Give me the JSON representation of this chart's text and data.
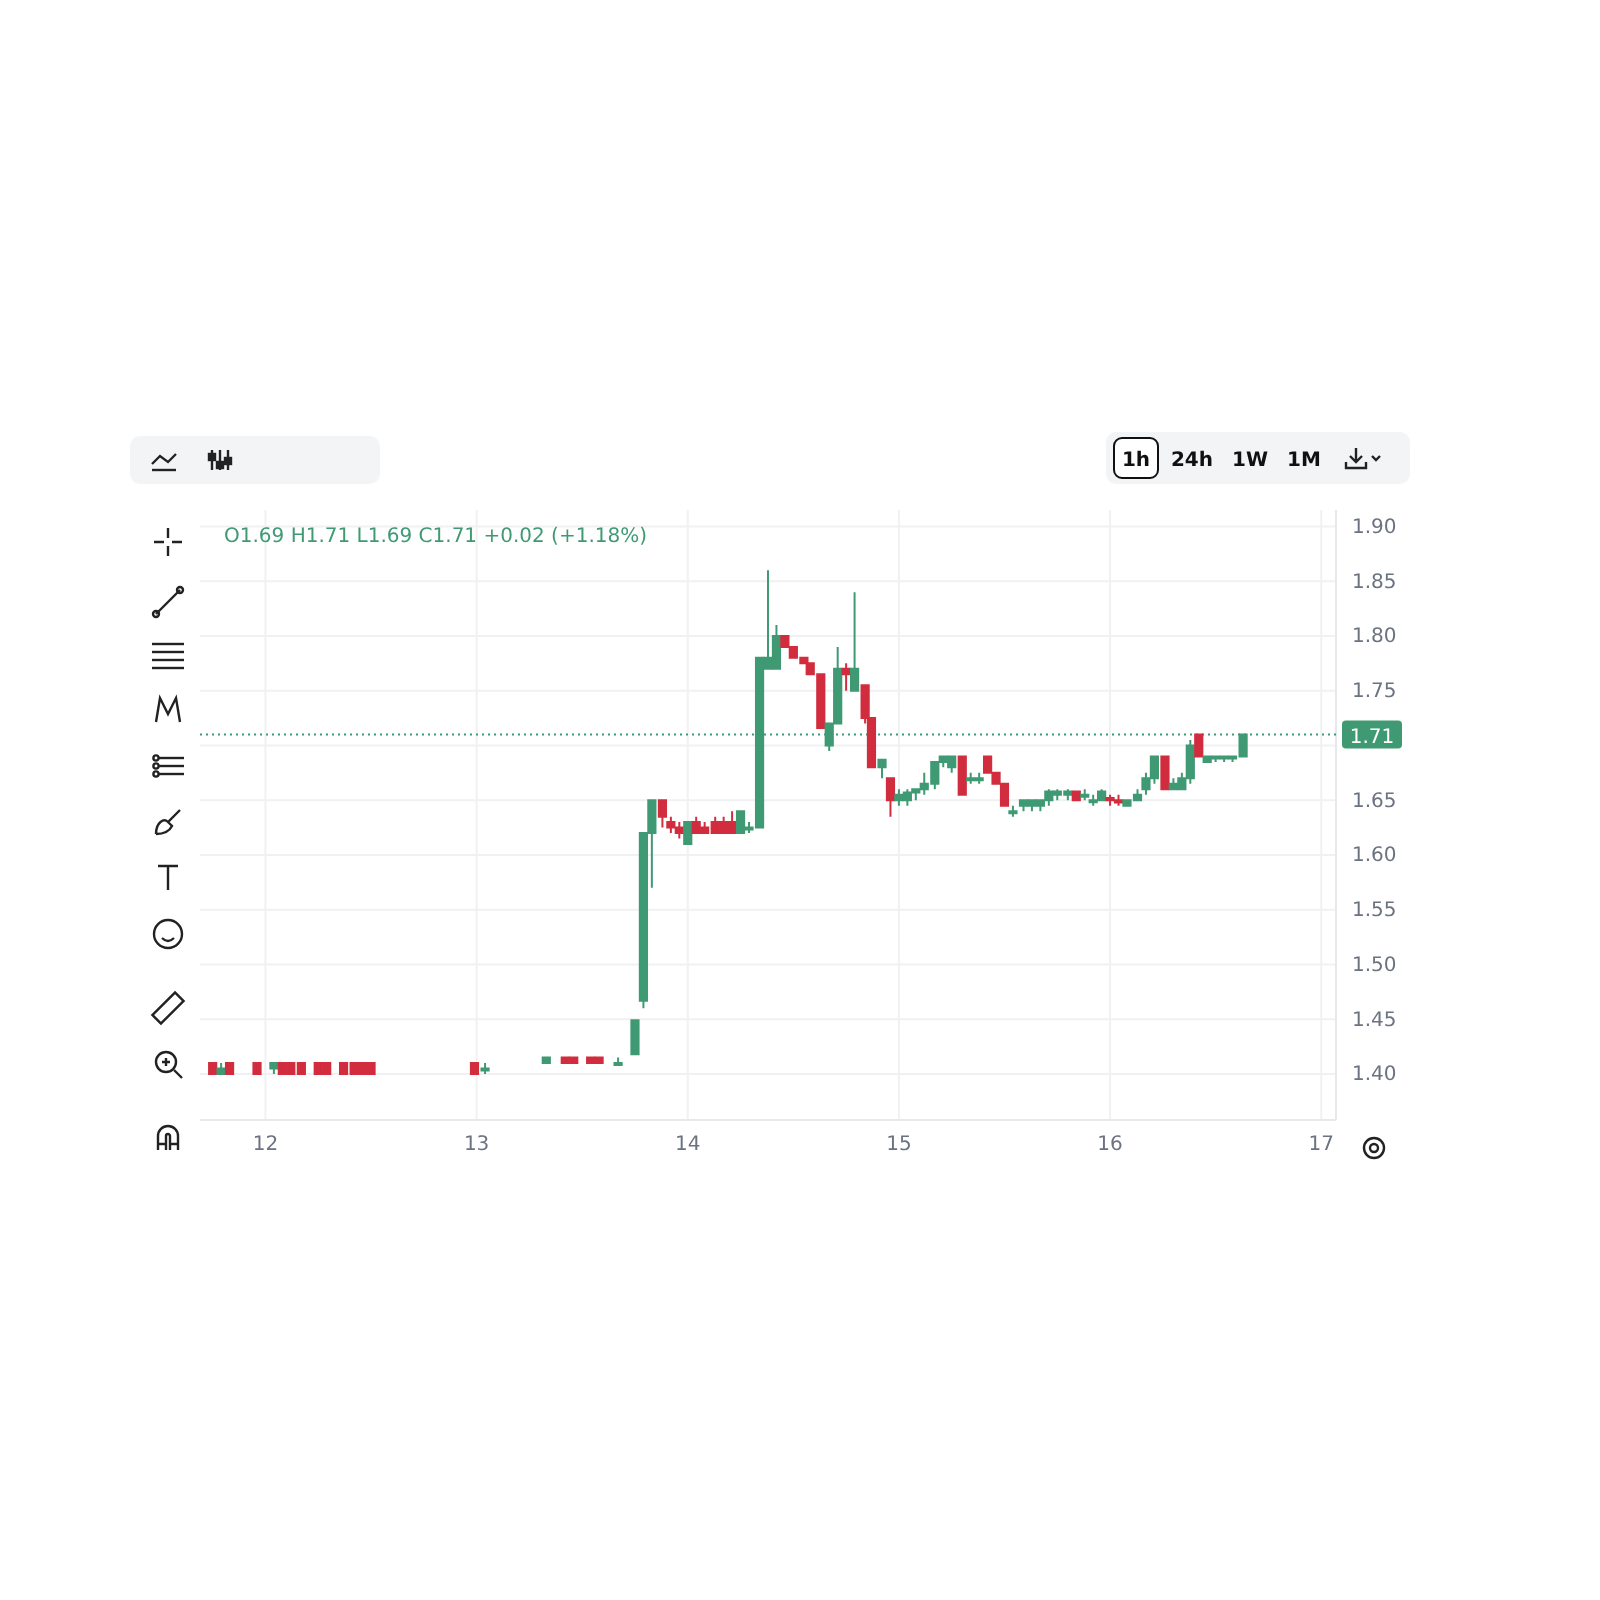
{
  "chart_data": {
    "type": "candlestick",
    "annotations": [
      "O1.69 H1.71 L1.69 C1.71 +0.02 (+1.18%)",
      "1h",
      "24h",
      "1W",
      "1M"
    ],
    "x": [
      11.75,
      11.79,
      11.83,
      11.96,
      12.04,
      12.08,
      12.12,
      12.17,
      12.25,
      12.29,
      12.37,
      12.42,
      12.46,
      12.5,
      12.99,
      13.04,
      13.33,
      13.42,
      13.46,
      13.54,
      13.58,
      13.67,
      13.75,
      13.79,
      13.83,
      13.88,
      13.92,
      13.96,
      14.0,
      14.04,
      14.08,
      14.13,
      14.17,
      14.21,
      14.25,
      14.29,
      14.34,
      14.38,
      14.42,
      14.46,
      14.5,
      14.55,
      14.58,
      14.63,
      14.67,
      14.71,
      14.75,
      14.79,
      14.84,
      14.87,
      14.92,
      14.96,
      15.0,
      15.04,
      15.08,
      15.12,
      15.17,
      15.21,
      15.25,
      15.3,
      15.34,
      15.38,
      15.42,
      15.46,
      15.5,
      15.54,
      15.59,
      15.63,
      15.67,
      15.71,
      15.75,
      15.8,
      15.84,
      15.88,
      15.92,
      15.96,
      16.0,
      16.04,
      16.08,
      16.13,
      16.17,
      16.21,
      16.26,
      16.3,
      16.34,
      16.38,
      16.42,
      16.46,
      16.5,
      16.54,
      16.58,
      16.63
    ],
    "ohlc": [
      [
        1.41,
        1.41,
        1.4,
        1.4
      ],
      [
        1.4,
        1.41,
        1.4,
        1.405
      ],
      [
        1.41,
        1.41,
        1.4,
        1.4
      ],
      [
        1.41,
        1.41,
        1.4,
        1.4
      ],
      [
        1.405,
        1.41,
        1.4,
        1.41
      ],
      [
        1.41,
        1.41,
        1.4,
        1.4
      ],
      [
        1.41,
        1.41,
        1.4,
        1.4
      ],
      [
        1.41,
        1.41,
        1.4,
        1.4
      ],
      [
        1.41,
        1.41,
        1.4,
        1.4
      ],
      [
        1.41,
        1.41,
        1.4,
        1.4
      ],
      [
        1.41,
        1.41,
        1.4,
        1.4
      ],
      [
        1.41,
        1.41,
        1.4,
        1.4
      ],
      [
        1.41,
        1.41,
        1.4,
        1.4
      ],
      [
        1.41,
        1.41,
        1.4,
        1.4
      ],
      [
        1.41,
        1.41,
        1.4,
        1.4
      ],
      [
        1.405,
        1.41,
        1.4,
        1.405
      ],
      [
        1.41,
        1.415,
        1.41,
        1.415
      ],
      [
        1.415,
        1.415,
        1.41,
        1.41
      ],
      [
        1.415,
        1.415,
        1.41,
        1.41
      ],
      [
        1.415,
        1.415,
        1.41,
        1.41
      ],
      [
        1.415,
        1.415,
        1.41,
        1.41
      ],
      [
        1.41,
        1.415,
        1.41,
        1.41
      ],
      [
        1.418,
        1.45,
        1.418,
        1.449
      ],
      [
        1.467,
        1.62,
        1.46,
        1.62
      ],
      [
        1.62,
        1.65,
        1.57,
        1.65
      ],
      [
        1.65,
        1.65,
        1.625,
        1.635
      ],
      [
        1.63,
        1.635,
        1.62,
        1.625
      ],
      [
        1.625,
        1.63,
        1.615,
        1.62
      ],
      [
        1.61,
        1.63,
        1.61,
        1.63
      ],
      [
        1.63,
        1.635,
        1.62,
        1.62
      ],
      [
        1.625,
        1.63,
        1.62,
        1.62
      ],
      [
        1.63,
        1.635,
        1.62,
        1.62
      ],
      [
        1.63,
        1.635,
        1.62,
        1.62
      ],
      [
        1.63,
        1.64,
        1.62,
        1.62
      ],
      [
        1.62,
        1.64,
        1.62,
        1.64
      ],
      [
        1.625,
        1.63,
        1.62,
        1.625
      ],
      [
        1.625,
        1.78,
        1.625,
        1.78
      ],
      [
        1.77,
        1.86,
        1.77,
        1.78
      ],
      [
        1.77,
        1.81,
        1.77,
        1.8
      ],
      [
        1.8,
        1.8,
        1.79,
        1.79
      ],
      [
        1.79,
        1.79,
        1.78,
        1.78
      ],
      [
        1.78,
        1.78,
        1.775,
        1.775
      ],
      [
        1.775,
        1.775,
        1.765,
        1.765
      ],
      [
        1.765,
        1.765,
        1.716,
        1.716
      ],
      [
        1.7,
        1.72,
        1.695,
        1.72
      ],
      [
        1.72,
        1.79,
        1.72,
        1.77
      ],
      [
        1.77,
        1.775,
        1.75,
        1.765
      ],
      [
        1.75,
        1.84,
        1.75,
        1.77
      ],
      [
        1.755,
        1.755,
        1.72,
        1.725
      ],
      [
        1.725,
        1.725,
        1.68,
        1.68
      ],
      [
        1.68,
        1.687,
        1.67,
        1.687
      ],
      [
        1.67,
        1.67,
        1.635,
        1.65
      ],
      [
        1.65,
        1.66,
        1.645,
        1.655
      ],
      [
        1.65,
        1.66,
        1.645,
        1.657
      ],
      [
        1.657,
        1.66,
        1.65,
        1.66
      ],
      [
        1.66,
        1.675,
        1.655,
        1.665
      ],
      [
        1.665,
        1.685,
        1.66,
        1.685
      ],
      [
        1.685,
        1.69,
        1.68,
        1.69
      ],
      [
        1.68,
        1.69,
        1.675,
        1.69
      ],
      [
        1.69,
        1.69,
        1.655,
        1.655
      ],
      [
        1.67,
        1.675,
        1.665,
        1.67
      ],
      [
        1.67,
        1.675,
        1.665,
        1.67
      ],
      [
        1.69,
        1.69,
        1.675,
        1.675
      ],
      [
        1.675,
        1.675,
        1.665,
        1.665
      ],
      [
        1.665,
        1.665,
        1.645,
        1.645
      ],
      [
        1.64,
        1.645,
        1.635,
        1.64
      ],
      [
        1.645,
        1.65,
        1.64,
        1.65
      ],
      [
        1.645,
        1.65,
        1.64,
        1.65
      ],
      [
        1.645,
        1.65,
        1.64,
        1.65
      ],
      [
        1.65,
        1.66,
        1.645,
        1.658
      ],
      [
        1.655,
        1.66,
        1.65,
        1.658
      ],
      [
        1.655,
        1.66,
        1.65,
        1.658
      ],
      [
        1.658,
        1.658,
        1.65,
        1.65
      ],
      [
        1.655,
        1.66,
        1.65,
        1.655
      ],
      [
        1.65,
        1.655,
        1.645,
        1.65
      ],
      [
        1.65,
        1.66,
        1.65,
        1.658
      ],
      [
        1.652,
        1.655,
        1.645,
        1.65
      ],
      [
        1.65,
        1.655,
        1.645,
        1.648
      ],
      [
        1.645,
        1.65,
        1.645,
        1.65
      ],
      [
        1.65,
        1.66,
        1.65,
        1.655
      ],
      [
        1.66,
        1.675,
        1.655,
        1.67
      ],
      [
        1.67,
        1.69,
        1.665,
        1.69
      ],
      [
        1.69,
        1.69,
        1.66,
        1.66
      ],
      [
        1.66,
        1.67,
        1.66,
        1.665
      ],
      [
        1.66,
        1.675,
        1.66,
        1.67
      ],
      [
        1.67,
        1.705,
        1.665,
        1.7
      ],
      [
        1.71,
        1.71,
        1.69,
        1.69
      ],
      [
        1.685,
        1.69,
        1.685,
        1.69
      ],
      [
        1.69,
        1.69,
        1.685,
        1.69
      ],
      [
        1.69,
        1.69,
        1.685,
        1.69
      ],
      [
        1.69,
        1.69,
        1.685,
        1.69
      ],
      [
        1.69,
        1.71,
        1.69,
        1.71
      ]
    ],
    "colors": [
      "#d12d3e",
      "#3f9a74",
      "#d12d3e",
      "#d12d3e",
      "#3f9a74",
      "#d12d3e",
      "#d12d3e",
      "#d12d3e",
      "#d12d3e",
      "#d12d3e",
      "#d12d3e",
      "#d12d3e",
      "#d12d3e",
      "#d12d3e",
      "#d12d3e",
      "#3f9a74",
      "#3f9a74",
      "#d12d3e",
      "#d12d3e",
      "#d12d3e",
      "#d12d3e",
      "#3f9a74",
      "#3f9a74",
      "#3f9a74",
      "#3f9a74",
      "#d12d3e",
      "#d12d3e",
      "#d12d3e",
      "#3f9a74",
      "#d12d3e",
      "#d12d3e",
      "#d12d3e",
      "#d12d3e",
      "#d12d3e",
      "#3f9a74",
      "#3f9a74",
      "#3f9a74",
      "#3f9a74",
      "#3f9a74",
      "#d12d3e",
      "#d12d3e",
      "#d12d3e",
      "#d12d3e",
      "#d12d3e",
      "#3f9a74",
      "#3f9a74",
      "#d12d3e",
      "#3f9a74",
      "#d12d3e",
      "#d12d3e",
      "#3f9a74",
      "#d12d3e",
      "#3f9a74",
      "#3f9a74",
      "#3f9a74",
      "#3f9a74",
      "#3f9a74",
      "#3f9a74",
      "#3f9a74",
      "#d12d3e",
      "#3f9a74",
      "#3f9a74",
      "#d12d3e",
      "#d12d3e",
      "#d12d3e",
      "#3f9a74",
      "#3f9a74",
      "#3f9a74",
      "#3f9a74",
      "#3f9a74",
      "#3f9a74",
      "#3f9a74",
      "#d12d3e",
      "#3f9a74",
      "#3f9a74",
      "#3f9a74",
      "#d12d3e",
      "#d12d3e",
      "#3f9a74",
      "#3f9a74",
      "#3f9a74",
      "#3f9a74",
      "#d12d3e",
      "#3f9a74",
      "#3f9a74",
      "#3f9a74",
      "#d12d3e",
      "#3f9a74",
      "#3f9a74",
      "#3f9a74",
      "#3f9a74",
      "#3f9a74"
    ],
    "xlim": [
      11.69,
      17.07
    ],
    "xticks": [
      12,
      13,
      14,
      15,
      16,
      17
    ],
    "ylim": [
      1.358,
      1.915
    ],
    "yticks": [
      {
        "value": 1.4,
        "label": "1.40"
      },
      1.45,
      {
        "value": 1.5,
        "label": "1.50"
      },
      1.55,
      {
        "value": 1.6,
        "label": "1.60"
      },
      1.65,
      {
        "value": 1.7,
        "label": null
      },
      1.75,
      {
        "value": 1.8,
        "label": "1.80"
      },
      1.85,
      {
        "value": 1.9,
        "label": "1.90"
      }
    ],
    "grid": true,
    "ref_lines": [
      {
        "axis": "y",
        "value": 1.71,
        "label": "1.71",
        "color": "#3f9a74",
        "line_style": "dotted"
      }
    ]
  }
}
